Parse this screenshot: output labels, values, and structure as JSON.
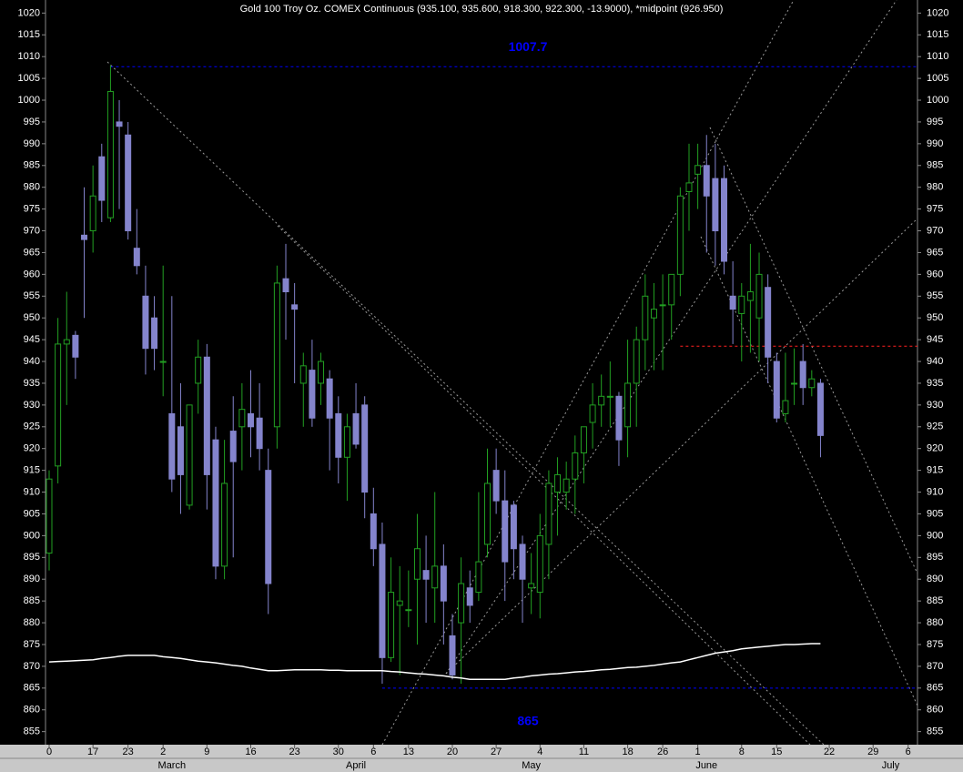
{
  "chart_data": {
    "type": "candlestick",
    "title": "Gold 100 Troy Oz. COMEX Continuous (935.100, 935.600, 918.300, 922.300, -13.9000), *midpoint (926.950)",
    "categories": [
      "0",
      null,
      null,
      null,
      null,
      "17",
      null,
      null,
      null,
      "23",
      null,
      null,
      null,
      "2",
      null,
      null,
      null,
      null,
      "9",
      null,
      null,
      null,
      null,
      "16",
      null,
      null,
      null,
      null,
      "23",
      null,
      null,
      null,
      null,
      "30",
      null,
      null,
      null,
      "6",
      null,
      null,
      null,
      "13",
      null,
      null,
      null,
      null,
      "20",
      null,
      null,
      null,
      null,
      "27",
      null,
      null,
      null,
      null,
      "4",
      null,
      null,
      null,
      null,
      "11",
      null,
      null,
      null,
      null,
      "18",
      null,
      null,
      null,
      "26",
      null,
      null,
      null,
      "1",
      null,
      null,
      null,
      null,
      "8",
      null,
      null,
      null,
      "15",
      null,
      null,
      null,
      null,
      null,
      "22",
      null,
      null,
      null,
      null,
      "29",
      null,
      null,
      null,
      "6"
    ],
    "months": [
      null,
      null,
      null,
      null,
      null,
      null,
      null,
      null,
      null,
      null,
      null,
      null,
      null,
      null,
      "March",
      null,
      null,
      null,
      null,
      null,
      null,
      null,
      null,
      null,
      null,
      null,
      null,
      null,
      null,
      null,
      null,
      null,
      null,
      null,
      null,
      "April",
      null,
      null,
      null,
      null,
      null,
      null,
      null,
      null,
      null,
      null,
      null,
      null,
      null,
      null,
      null,
      null,
      null,
      null,
      null,
      "May",
      null,
      null,
      null,
      null,
      null,
      null,
      null,
      null,
      null,
      null,
      null,
      null,
      null,
      null,
      null,
      null,
      null,
      null,
      null,
      "June",
      null,
      null,
      null,
      null,
      null,
      null,
      null,
      null,
      null,
      null,
      null,
      null,
      null,
      null,
      null,
      null,
      null,
      null,
      null,
      null,
      "July",
      null,
      null
    ],
    "open": [
      896,
      916,
      944,
      946,
      969,
      970,
      987,
      973,
      995,
      992,
      966,
      955,
      950,
      940,
      928,
      925,
      907,
      935,
      941,
      922,
      893,
      924,
      925,
      928,
      927,
      915,
      925,
      959,
      953,
      935,
      938,
      935,
      936,
      928,
      918,
      928,
      930,
      905,
      898,
      872,
      884,
      883,
      890,
      892,
      888,
      893,
      877,
      880,
      888,
      887,
      898,
      915,
      908,
      907,
      898,
      888,
      887,
      898,
      910,
      910,
      913,
      919,
      926,
      930,
      932,
      932,
      925,
      935,
      945,
      950,
      953,
      953,
      960,
      979,
      983,
      985,
      982,
      982,
      955,
      951,
      954,
      950,
      957,
      940,
      928,
      935,
      940,
      934,
      935,
      null,
      null,
      null,
      null,
      null,
      null,
      null,
      null,
      null,
      null
    ],
    "high": [
      915,
      950,
      956,
      947,
      980,
      985,
      990,
      1008,
      1000,
      995,
      975,
      962,
      955,
      962,
      955,
      935,
      930,
      945,
      944,
      925,
      922,
      932,
      935,
      938,
      935,
      920,
      962,
      967,
      958,
      942,
      945,
      942,
      938,
      932,
      928,
      935,
      932,
      911,
      903,
      895,
      893,
      892,
      905,
      900,
      910,
      898,
      882,
      895,
      892,
      910,
      920,
      920,
      915,
      908,
      900,
      896,
      905,
      915,
      918,
      917,
      923,
      925,
      935,
      937,
      940,
      933,
      945,
      948,
      960,
      958,
      960,
      960,
      980,
      990,
      990,
      992,
      990,
      985,
      963,
      958,
      967,
      965,
      960,
      942,
      942,
      943,
      944,
      938,
      936,
      null,
      null,
      null,
      null,
      null,
      null,
      null,
      null,
      null,
      null
    ],
    "low": [
      892,
      912,
      930,
      936,
      950,
      965,
      972,
      972,
      975,
      968,
      960,
      937,
      938,
      932,
      910,
      905,
      906,
      928,
      906,
      890,
      890,
      895,
      915,
      918,
      915,
      882,
      920,
      945,
      935,
      925,
      925,
      930,
      915,
      912,
      908,
      920,
      904,
      893,
      866,
      871,
      868,
      879,
      875,
      880,
      880,
      875,
      867,
      866,
      880,
      885,
      895,
      905,
      885,
      890,
      880,
      882,
      881,
      890,
      900,
      906,
      905,
      912,
      920,
      925,
      925,
      916,
      918,
      925,
      938,
      938,
      938,
      945,
      955,
      970,
      975,
      965,
      962,
      960,
      944,
      940,
      942,
      940,
      935,
      926,
      926,
      930,
      930,
      932,
      918,
      null,
      null,
      null,
      null,
      null,
      null,
      null,
      null,
      null,
      null
    ],
    "close": [
      913,
      944,
      945,
      941,
      968,
      978,
      977,
      1002,
      994,
      970,
      962,
      943,
      943,
      940,
      913,
      914,
      930,
      941,
      914,
      893,
      912,
      917,
      929,
      925,
      920,
      889,
      958,
      956,
      952,
      939,
      927,
      940,
      927,
      918,
      925,
      921,
      910,
      897,
      872,
      887,
      885,
      883,
      897,
      890,
      893,
      885,
      868,
      889,
      884,
      894,
      912,
      908,
      894,
      897,
      890,
      889,
      900,
      912,
      914,
      913,
      919,
      925,
      930,
      932,
      932,
      922,
      935,
      945,
      955,
      952,
      953,
      960,
      978,
      981,
      985,
      978,
      970,
      963,
      952,
      955,
      956,
      960,
      941,
      927,
      931,
      935,
      934,
      936,
      923,
      null,
      null,
      null,
      null,
      null,
      null,
      null,
      null,
      null,
      null
    ],
    "up_color": "#22a022",
    "down_color": "#8484cc",
    "average": {
      "color": "#ffffff",
      "values": [
        871,
        871.1,
        871.2,
        871.3,
        871.4,
        871.5,
        871.8,
        872,
        872.3,
        872.5,
        872.5,
        872.5,
        872.5,
        872.2,
        872,
        871.8,
        871.5,
        871.2,
        871,
        870.8,
        870.5,
        870.2,
        870,
        869.6,
        869.3,
        869,
        869,
        869.1,
        869.2,
        869.2,
        869.2,
        869.2,
        869.1,
        869.1,
        869,
        869,
        869,
        869,
        869,
        868.8,
        868.7,
        868.5,
        868.3,
        868.2,
        868,
        867.8,
        867.5,
        867.3,
        867,
        867,
        867,
        867,
        867,
        867.3,
        867.5,
        867.8,
        868,
        868.2,
        868.3,
        868.5,
        868.7,
        868.8,
        869,
        869.2,
        869.3,
        869.5,
        869.7,
        869.8,
        870,
        870.2,
        870.5,
        870.8,
        871,
        871.5,
        872,
        872.5,
        873,
        873.3,
        873.6,
        874,
        874.2,
        874.4,
        874.6,
        874.8,
        875,
        875,
        875.1,
        875.2,
        875.2,
        null,
        null,
        null,
        null,
        null,
        null,
        null,
        null,
        null,
        null
      ]
    },
    "levels": [
      {
        "value": 1007.7,
        "from": 7,
        "color": "#0000ff",
        "labeled": true
      },
      {
        "value": 865,
        "from": 38,
        "color": "#0000ff",
        "labeled": true
      },
      {
        "value": 943.5,
        "from": 72,
        "color": "#ff2020",
        "labeled": false
      }
    ],
    "ylim": [
      852,
      1023
    ],
    "yticks": [
      855,
      860,
      865,
      870,
      875,
      880,
      885,
      890,
      895,
      900,
      905,
      910,
      915,
      920,
      925,
      930,
      935,
      940,
      945,
      950,
      955,
      960,
      965,
      970,
      975,
      980,
      985,
      990,
      995,
      1000,
      1005,
      1010,
      1015,
      1020
    ]
  }
}
